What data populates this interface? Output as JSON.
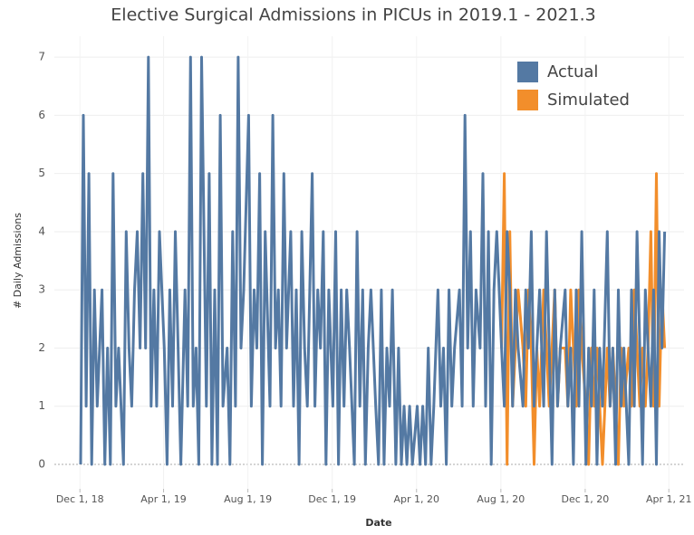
{
  "chart_data": {
    "type": "line",
    "title": "Elective Surgical Admissions in PICUs in 2019.1 - 2021.3",
    "x_label": "Date",
    "y_label": "# Daily Admissions",
    "xlim": [
      "2018-10-25",
      "2021-04-23"
    ],
    "xticks": [
      {
        "value": "2018-12-01",
        "label": "Dec 1, 18"
      },
      {
        "value": "2019-04-01",
        "label": "Apr 1, 19"
      },
      {
        "value": "2019-08-01",
        "label": "Aug 1, 19"
      },
      {
        "value": "2019-12-01",
        "label": "Dec 1, 19"
      },
      {
        "value": "2020-04-01",
        "label": "Apr 1, 20"
      },
      {
        "value": "2020-08-01",
        "label": "Aug 1, 20"
      },
      {
        "value": "2020-12-01",
        "label": "Dec 1, 20"
      },
      {
        "value": "2021-04-01",
        "label": "Apr 1, 21"
      }
    ],
    "ylim": [
      -0.42,
      7.36
    ],
    "yticks": [
      0,
      1,
      2,
      3,
      4,
      5,
      6,
      7
    ],
    "grid": true,
    "legend": "top-right",
    "series": [
      {
        "name": "Actual",
        "color": "#5479a3",
        "x": [
          "2018-12-02",
          "2018-12-06",
          "2018-12-10",
          "2018-12-14",
          "2018-12-18",
          "2018-12-22",
          "2018-12-26",
          "2019-01-02",
          "2019-01-06",
          "2019-01-10",
          "2019-01-14",
          "2019-01-18",
          "2019-01-22",
          "2019-01-26",
          "2019-02-02",
          "2019-02-06",
          "2019-02-10",
          "2019-02-14",
          "2019-02-18",
          "2019-02-22",
          "2019-02-26",
          "2019-03-02",
          "2019-03-06",
          "2019-03-10",
          "2019-03-14",
          "2019-03-18",
          "2019-03-22",
          "2019-03-26",
          "2019-04-02",
          "2019-04-06",
          "2019-04-10",
          "2019-04-14",
          "2019-04-18",
          "2019-04-22",
          "2019-04-26",
          "2019-05-02",
          "2019-05-06",
          "2019-05-10",
          "2019-05-14",
          "2019-05-18",
          "2019-05-22",
          "2019-05-26",
          "2019-06-02",
          "2019-06-06",
          "2019-06-10",
          "2019-06-14",
          "2019-06-18",
          "2019-06-22",
          "2019-06-26",
          "2019-07-02",
          "2019-07-06",
          "2019-07-10",
          "2019-07-14",
          "2019-07-18",
          "2019-07-22",
          "2019-07-26",
          "2019-08-02",
          "2019-08-06",
          "2019-08-10",
          "2019-08-14",
          "2019-08-18",
          "2019-08-22",
          "2019-08-26",
          "2019-09-02",
          "2019-09-06",
          "2019-09-10",
          "2019-09-14",
          "2019-09-18",
          "2019-09-22",
          "2019-09-26",
          "2019-10-02",
          "2019-10-06",
          "2019-10-10",
          "2019-10-14",
          "2019-10-18",
          "2019-10-22",
          "2019-10-26",
          "2019-11-02",
          "2019-11-06",
          "2019-11-10",
          "2019-11-14",
          "2019-11-18",
          "2019-11-22",
          "2019-11-26",
          "2019-12-02",
          "2019-12-06",
          "2019-12-10",
          "2019-12-14",
          "2019-12-18",
          "2019-12-22",
          "2019-12-26",
          "2020-01-02",
          "2020-01-06",
          "2020-01-10",
          "2020-01-14",
          "2020-01-18",
          "2020-01-22",
          "2020-01-26",
          "2020-02-02",
          "2020-02-06",
          "2020-02-10",
          "2020-02-14",
          "2020-02-18",
          "2020-02-22",
          "2020-02-26",
          "2020-03-02",
          "2020-03-06",
          "2020-03-10",
          "2020-03-14",
          "2020-03-18",
          "2020-03-22",
          "2020-03-26",
          "2020-04-02",
          "2020-04-06",
          "2020-04-10",
          "2020-04-14",
          "2020-04-18",
          "2020-04-22",
          "2020-04-26",
          "2020-05-02",
          "2020-05-06",
          "2020-05-10",
          "2020-05-14",
          "2020-05-18",
          "2020-05-22",
          "2020-05-26",
          "2020-06-02",
          "2020-06-06",
          "2020-06-10",
          "2020-06-14",
          "2020-06-18",
          "2020-06-22",
          "2020-06-26",
          "2020-07-02",
          "2020-07-06",
          "2020-07-10",
          "2020-07-14",
          "2020-07-18",
          "2020-07-22",
          "2020-07-26",
          "2020-08-02",
          "2020-08-06",
          "2020-08-10",
          "2020-08-14",
          "2020-08-18",
          "2020-08-22",
          "2020-08-26",
          "2020-09-02",
          "2020-09-06",
          "2020-09-10",
          "2020-09-14",
          "2020-09-18",
          "2020-09-22",
          "2020-09-26",
          "2020-10-02",
          "2020-10-06",
          "2020-10-10",
          "2020-10-14",
          "2020-10-18",
          "2020-10-22",
          "2020-10-26",
          "2020-11-02",
          "2020-11-06",
          "2020-11-10",
          "2020-11-14",
          "2020-11-18",
          "2020-11-22",
          "2020-11-26",
          "2020-12-02",
          "2020-12-06",
          "2020-12-10",
          "2020-12-14",
          "2020-12-18",
          "2020-12-22",
          "2020-12-26",
          "2021-01-02",
          "2021-01-06",
          "2021-01-10",
          "2021-01-14",
          "2021-01-18",
          "2021-01-22",
          "2021-01-26",
          "2021-02-02",
          "2021-02-06",
          "2021-02-10",
          "2021-02-14",
          "2021-02-18",
          "2021-02-22",
          "2021-02-26",
          "2021-03-02",
          "2021-03-06",
          "2021-03-10",
          "2021-03-14",
          "2021-03-18",
          "2021-03-22",
          "2021-03-26"
        ],
        "values": [
          0,
          6,
          1,
          5,
          0,
          3,
          1,
          3,
          0,
          2,
          0,
          5,
          1,
          2,
          0,
          4,
          2,
          1,
          3,
          4,
          2,
          5,
          2,
          7,
          1,
          3,
          1,
          4,
          2,
          0,
          3,
          1,
          4,
          2,
          0,
          3,
          1,
          7,
          1,
          2,
          0,
          7,
          1,
          5,
          0,
          3,
          0,
          6,
          1,
          2,
          0,
          4,
          1,
          7,
          2,
          3,
          6,
          1,
          3,
          2,
          5,
          0,
          4,
          1,
          6,
          2,
          3,
          1,
          5,
          2,
          4,
          1,
          3,
          0,
          4,
          2,
          1,
          5,
          1,
          3,
          2,
          4,
          0,
          3,
          1,
          4,
          0,
          3,
          1,
          3,
          2,
          0,
          4,
          1,
          3,
          0,
          2,
          3,
          1,
          0,
          3,
          0,
          2,
          1,
          3,
          0,
          2,
          0,
          1,
          0,
          1,
          0,
          1,
          0,
          1,
          0,
          2,
          0,
          1,
          3,
          1,
          2,
          0,
          3,
          1,
          2,
          3,
          1,
          6,
          2,
          4,
          1,
          3,
          2,
          5,
          1,
          4,
          0,
          3,
          4,
          2,
          1,
          4,
          3,
          1,
          3,
          2,
          1,
          3,
          2,
          4,
          1,
          2,
          3,
          1,
          4,
          2,
          0,
          3,
          1,
          2,
          3,
          1,
          2,
          0,
          3,
          1,
          4,
          0,
          2,
          1,
          3,
          0,
          2,
          1,
          4,
          1,
          2,
          0,
          3,
          1,
          2,
          0,
          3,
          1,
          4,
          2,
          0,
          3,
          2,
          1,
          3,
          0,
          4,
          2,
          4
        ]
      },
      {
        "name": "Simulated",
        "color": "#f28e2b",
        "x": [
          "2020-08-02",
          "2020-08-06",
          "2020-08-10",
          "2020-08-14",
          "2020-08-18",
          "2020-08-22",
          "2020-08-26",
          "2020-09-02",
          "2020-09-06",
          "2020-09-10",
          "2020-09-14",
          "2020-09-18",
          "2020-09-22",
          "2020-09-26",
          "2020-10-02",
          "2020-10-06",
          "2020-10-10",
          "2020-10-14",
          "2020-10-18",
          "2020-10-22",
          "2020-10-26",
          "2020-11-02",
          "2020-11-06",
          "2020-11-10",
          "2020-11-14",
          "2020-11-18",
          "2020-11-22",
          "2020-11-26",
          "2020-12-02",
          "2020-12-06",
          "2020-12-10",
          "2020-12-14",
          "2020-12-18",
          "2020-12-22",
          "2020-12-26",
          "2021-01-02",
          "2021-01-06",
          "2021-01-10",
          "2021-01-14",
          "2021-01-18",
          "2021-01-22",
          "2021-01-26",
          "2021-02-02",
          "2021-02-06",
          "2021-02-10",
          "2021-02-14",
          "2021-02-18",
          "2021-02-22",
          "2021-02-26",
          "2021-03-02",
          "2021-03-06",
          "2021-03-10",
          "2021-03-14",
          "2021-03-18",
          "2021-03-22",
          "2021-03-26"
        ],
        "values": [
          2,
          5,
          0,
          4,
          1,
          2,
          3,
          2,
          1,
          3,
          2,
          0,
          2,
          1,
          3,
          2,
          1,
          2,
          3,
          1,
          2,
          2,
          1,
          3,
          2,
          1,
          3,
          2,
          1,
          0,
          2,
          1,
          2,
          1,
          0,
          2,
          1,
          2,
          1,
          0,
          2,
          1,
          2,
          1,
          3,
          2,
          1,
          2,
          1,
          2,
          4,
          1,
          5,
          1,
          3,
          2
        ]
      }
    ]
  }
}
